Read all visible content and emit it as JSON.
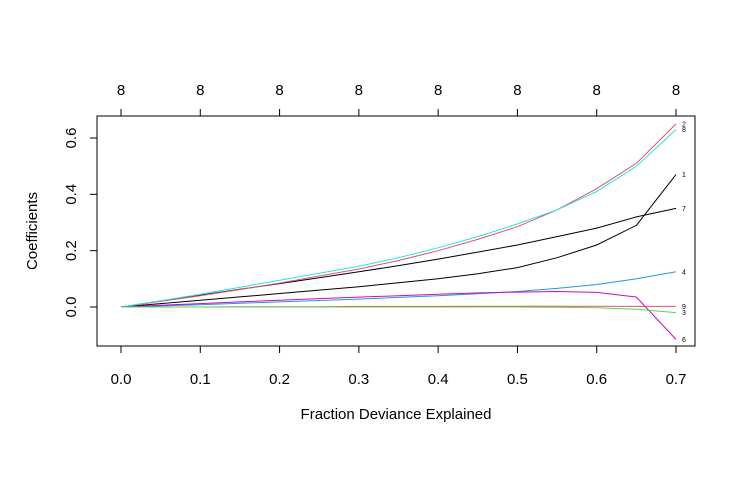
{
  "chart_data": {
    "type": "line",
    "title": "",
    "xlabel": "Fraction Deviance Explained",
    "ylabel": "Coefficients",
    "xlim": [
      0.0,
      0.7
    ],
    "ylim": [
      -0.13,
      0.66
    ],
    "x_ticks": [
      "0.0",
      "0.1",
      "0.2",
      "0.3",
      "0.4",
      "0.5",
      "0.6",
      "0.7"
    ],
    "y_ticks": [
      "0.0",
      "0.2",
      "0.4",
      "0.6"
    ],
    "top_axis_ticks": [
      "8",
      "8",
      "8",
      "8",
      "8",
      "8",
      "8",
      "8"
    ],
    "grid": false,
    "legend": "none",
    "x": [
      0.0,
      0.05,
      0.1,
      0.15,
      0.2,
      0.25,
      0.3,
      0.35,
      0.4,
      0.45,
      0.5,
      0.55,
      0.6,
      0.65,
      0.7
    ],
    "series": [
      {
        "label": "1",
        "color": "#000000",
        "values": [
          0.0,
          0.012,
          0.024,
          0.036,
          0.048,
          0.06,
          0.072,
          0.086,
          0.1,
          0.118,
          0.14,
          0.175,
          0.22,
          0.29,
          0.47
        ]
      },
      {
        "label": "7",
        "color": "#000000",
        "values": [
          0.0,
          0.021,
          0.042,
          0.063,
          0.083,
          0.104,
          0.125,
          0.147,
          0.17,
          0.195,
          0.22,
          0.25,
          0.28,
          0.32,
          0.35
        ]
      },
      {
        "label": "2",
        "color": "#df536b",
        "values": [
          0.0,
          0.02,
          0.04,
          0.062,
          0.085,
          0.11,
          0.135,
          0.165,
          0.2,
          0.24,
          0.285,
          0.345,
          0.42,
          0.51,
          0.65
        ]
      },
      {
        "label": "8",
        "color": "#28e2e5",
        "values": [
          0.0,
          0.022,
          0.045,
          0.07,
          0.095,
          0.12,
          0.145,
          0.175,
          0.21,
          0.25,
          0.295,
          0.345,
          0.41,
          0.5,
          0.63
        ]
      },
      {
        "label": "4",
        "color": "#2297e6",
        "values": [
          0.0,
          0.004,
          0.008,
          0.013,
          0.018,
          0.023,
          0.028,
          0.034,
          0.04,
          0.047,
          0.055,
          0.066,
          0.08,
          0.1,
          0.125
        ]
      },
      {
        "label": "6",
        "color": "#cd0bbc",
        "values": [
          0.0,
          0.006,
          0.012,
          0.018,
          0.024,
          0.03,
          0.035,
          0.04,
          0.045,
          0.05,
          0.053,
          0.055,
          0.052,
          0.035,
          -0.115
        ]
      },
      {
        "label": "9",
        "color": "#df536b",
        "values": [
          0.0,
          0.0,
          0.0,
          0.001,
          0.001,
          0.001,
          0.002,
          0.002,
          0.002,
          0.003,
          0.003,
          0.003,
          0.003,
          0.002,
          0.002
        ]
      },
      {
        "label": "3",
        "color": "#61d04f",
        "values": [
          0.0,
          0.0,
          0.0,
          0.0,
          0.0,
          0.0,
          0.0,
          0.0,
          0.0,
          0.0,
          0.0,
          -0.001,
          -0.003,
          -0.008,
          -0.02
        ]
      }
    ]
  }
}
